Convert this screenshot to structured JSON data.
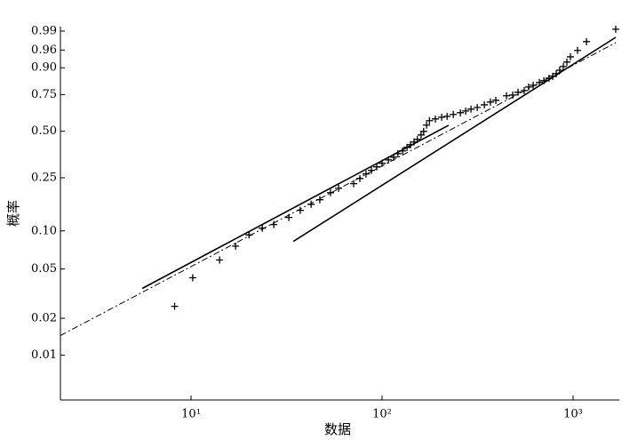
{
  "chart_data": {
    "type": "scatter",
    "x_label": "数据",
    "y_label": "概率",
    "xscale": "log",
    "yscale": "weibull",
    "xlim": [
      2.07,
      1746
    ],
    "ylim": [
      0.0043,
      0.9933
    ],
    "xticks": [
      {
        "value": 10,
        "label": "10¹"
      },
      {
        "value": 100,
        "label": "10²"
      },
      {
        "value": 1000,
        "label": "10³"
      }
    ],
    "yticks": [
      0.99,
      0.96,
      {
        "value": 0.9,
        "label": "0.90"
      },
      0.75,
      {
        "value": 0.5,
        "label": "0.50"
      },
      0.25,
      {
        "value": 0.1,
        "label": "0.10"
      },
      0.05,
      0.02,
      0.01
    ],
    "series": [
      {
        "color": "#000000",
        "marker": "+",
        "line_style": "none",
        "x": [
          8.2,
          10.2,
          14.1,
          17.1,
          20.1,
          23.6,
          27.1,
          32.5,
          37.3,
          42.5,
          47.2,
          53.7,
          59.2,
          71.0,
          76.5,
          82.4,
          87.9,
          93.8,
          100,
          108,
          115,
          121,
          128,
          135,
          141,
          147,
          153,
          160,
          165,
          171,
          177,
          190,
          205,
          219,
          236,
          257,
          274,
          292,
          315,
          343,
          369,
          394,
          448,
          483,
          515,
          555,
          585,
          618,
          666,
          703,
          748,
          782,
          816,
          851,
          889,
          928,
          968,
          1055,
          1175,
          1672
        ],
        "values": [
          0.025,
          0.0425,
          0.059,
          0.076,
          0.093,
          0.105,
          0.112,
          0.127,
          0.144,
          0.16,
          0.173,
          0.195,
          0.21,
          0.227,
          0.247,
          0.266,
          0.282,
          0.298,
          0.315,
          0.332,
          0.346,
          0.365,
          0.38,
          0.4,
          0.416,
          0.432,
          0.448,
          0.476,
          0.499,
          0.541,
          0.571,
          0.583,
          0.595,
          0.601,
          0.614,
          0.626,
          0.638,
          0.651,
          0.663,
          0.681,
          0.7,
          0.712,
          0.742,
          0.747,
          0.765,
          0.776,
          0.798,
          0.809,
          0.825,
          0.835,
          0.849,
          0.859,
          0.872,
          0.889,
          0.905,
          0.923,
          0.941,
          0.959,
          0.977,
          0.9915
        ]
      },
      {
        "color": "#000000",
        "marker": "none",
        "line_style": "dashdot",
        "x": [
          2.07,
          1672
        ],
        "values": [
          0.0145,
          0.9753
        ]
      },
      {
        "color": "#000000",
        "marker": "none",
        "line_style": "solid",
        "x": [
          5.55,
          223
        ],
        "values": [
          0.0349,
          0.54
        ]
      },
      {
        "color": "#000000",
        "marker": "none",
        "line_style": "solid",
        "x": [
          34.3,
          1672
        ],
        "values": [
          0.0827,
          0.9833
        ]
      }
    ]
  }
}
